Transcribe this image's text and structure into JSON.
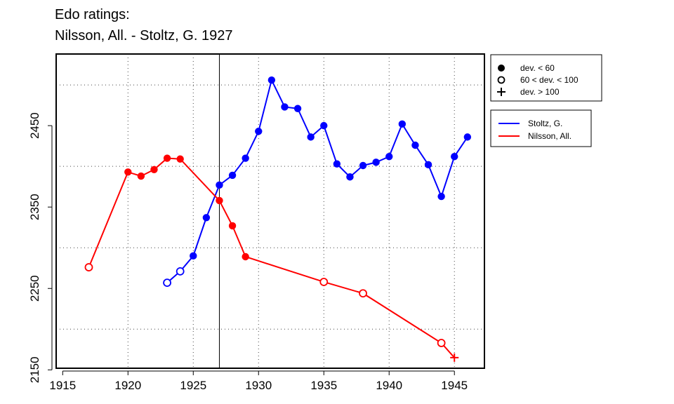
{
  "title": {
    "line1": "Edo ratings:",
    "line2": "Nilsson, All. - Stoltz, G. 1927"
  },
  "chart_data": {
    "type": "line",
    "xlim": [
      1914.5,
      1947.3
    ],
    "ylim": [
      2152,
      2538
    ],
    "x_ticks": [
      1915,
      1920,
      1925,
      1930,
      1935,
      1940,
      1945
    ],
    "y_ticks": [
      2150,
      2250,
      2350,
      2450
    ],
    "grid_x": [
      1920,
      1925,
      1930,
      1935,
      1940,
      1945
    ],
    "grid_y": [
      2200,
      2300,
      2400,
      2500
    ],
    "grid": true,
    "vertical_marker_x": 1927,
    "deviation_legend": [
      {
        "marker": "filled",
        "label": "dev. < 60"
      },
      {
        "marker": "open",
        "label": "60 < dev. < 100"
      },
      {
        "marker": "plus",
        "label": "dev. > 100"
      }
    ],
    "series": [
      {
        "name": "Stoltz, G.",
        "color": "#0000ff",
        "points": [
          {
            "x": 1923,
            "y": 2257,
            "m": "open"
          },
          {
            "x": 1924,
            "y": 2271,
            "m": "open"
          },
          {
            "x": 1925,
            "y": 2290,
            "m": "filled"
          },
          {
            "x": 1926,
            "y": 2337,
            "m": "filled"
          },
          {
            "x": 1927,
            "y": 2377,
            "m": "filled"
          },
          {
            "x": 1928,
            "y": 2389,
            "m": "filled"
          },
          {
            "x": 1929,
            "y": 2410,
            "m": "filled"
          },
          {
            "x": 1930,
            "y": 2443,
            "m": "filled"
          },
          {
            "x": 1931,
            "y": 2506,
            "m": "filled"
          },
          {
            "x": 1932,
            "y": 2473,
            "m": "filled"
          },
          {
            "x": 1933,
            "y": 2471,
            "m": "filled"
          },
          {
            "x": 1934,
            "y": 2436,
            "m": "filled"
          },
          {
            "x": 1935,
            "y": 2450,
            "m": "filled"
          },
          {
            "x": 1936,
            "y": 2403,
            "m": "filled"
          },
          {
            "x": 1937,
            "y": 2387,
            "m": "filled"
          },
          {
            "x": 1938,
            "y": 2401,
            "m": "filled"
          },
          {
            "x": 1939,
            "y": 2405,
            "m": "filled"
          },
          {
            "x": 1940,
            "y": 2412,
            "m": "filled"
          },
          {
            "x": 1941,
            "y": 2452,
            "m": "filled"
          },
          {
            "x": 1942,
            "y": 2426,
            "m": "filled"
          },
          {
            "x": 1943,
            "y": 2402,
            "m": "filled"
          },
          {
            "x": 1944,
            "y": 2363,
            "m": "filled"
          },
          {
            "x": 1945,
            "y": 2412,
            "m": "filled"
          },
          {
            "x": 1946,
            "y": 2436,
            "m": "filled"
          }
        ]
      },
      {
        "name": "Nilsson, All.",
        "color": "#ff0000",
        "points": [
          {
            "x": 1917,
            "y": 2276,
            "m": "open"
          },
          {
            "x": 1920,
            "y": 2393,
            "m": "filled"
          },
          {
            "x": 1921,
            "y": 2388,
            "m": "filled"
          },
          {
            "x": 1922,
            "y": 2396,
            "m": "filled"
          },
          {
            "x": 1923,
            "y": 2410,
            "m": "filled"
          },
          {
            "x": 1924,
            "y": 2409,
            "m": "filled"
          },
          {
            "x": 1927,
            "y": 2358,
            "m": "filled"
          },
          {
            "x": 1928,
            "y": 2327,
            "m": "filled"
          },
          {
            "x": 1929,
            "y": 2289,
            "m": "filled"
          },
          {
            "x": 1935,
            "y": 2258,
            "m": "open"
          },
          {
            "x": 1938,
            "y": 2244,
            "m": "open"
          },
          {
            "x": 1944,
            "y": 2183,
            "m": "open"
          },
          {
            "x": 1945,
            "y": 2165,
            "m": "plus"
          }
        ]
      }
    ]
  }
}
